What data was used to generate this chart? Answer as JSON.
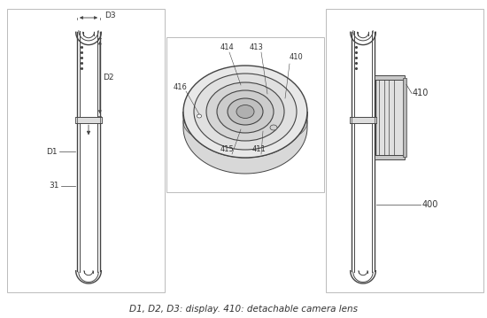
{
  "background_color": "#ffffff",
  "line_color": "#444444",
  "line_color_light": "#888888",
  "label_color": "#333333",
  "panel_edge": "#bbbbbb",
  "panel_bg": "#ffffff",
  "caption": "D1, D2, D3: display. 410: detachable camera lens",
  "caption_fontsize": 7.5,
  "fig_width": 5.5,
  "fig_height": 3.59,
  "dpi": 100
}
